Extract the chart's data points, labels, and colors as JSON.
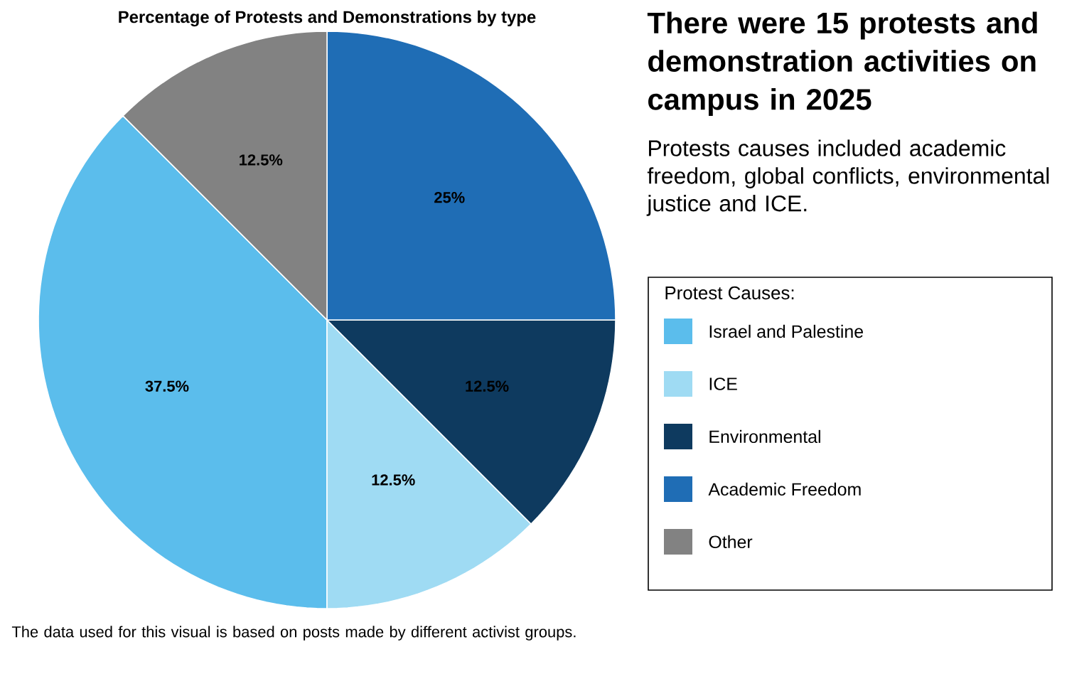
{
  "chart_data": {
    "type": "pie",
    "title": "There were 15 protests and demonstration activities on campus in 2025",
    "subtitle": "Protests causes included academic freedom, global conflicts, environmental justice and ICE.",
    "legend_title": "Protest Causes:",
    "legend": "right",
    "categories": [
      "Israel and Palestine",
      "ICE",
      "Environmental",
      "Academic Freedom",
      "Other"
    ],
    "values": [
      37.5,
      12.5,
      12.5,
      25,
      12.5
    ],
    "value_labels": [
      "37.5%",
      "12.5%",
      "12.5%",
      "25%",
      "12.5%"
    ],
    "colors": [
      "#5bbdec",
      "#9fdbf3",
      "#0e3a5f",
      "#1f6db5",
      "#828282"
    ],
    "annotations": [
      "Percentage of Protests and Demonstrations by type",
      "The data used for this visual is based on posts made by different activist groups."
    ]
  }
}
